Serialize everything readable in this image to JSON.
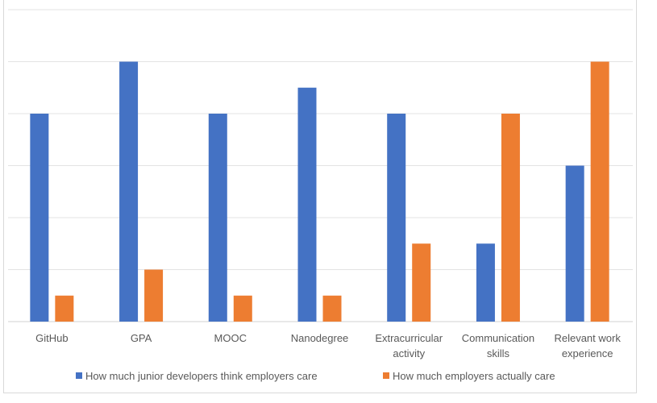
{
  "chart_data": {
    "type": "bar",
    "categories": [
      "GitHub",
      "GPA",
      "MOOC",
      "Nanodegree",
      "Extracurricular activity",
      "Communication skills",
      "Relevant work experience"
    ],
    "category_lines": [
      [
        "GitHub"
      ],
      [
        "GPA"
      ],
      [
        "MOOC"
      ],
      [
        "Nanodegree"
      ],
      [
        "Extracurricular",
        "activity"
      ],
      [
        "Communication",
        "skills"
      ],
      [
        "Relevant work",
        "experience"
      ]
    ],
    "series": [
      {
        "name": "How much junior developers think employers care",
        "color": "#4472C4",
        "values": [
          4,
          5,
          4,
          4.5,
          4,
          1.5,
          3
        ]
      },
      {
        "name": "How much employers actually care",
        "color": "#ED7D31",
        "values": [
          0.5,
          1,
          0.5,
          0.5,
          1.5,
          4,
          5
        ]
      }
    ],
    "ylim": [
      0,
      6
    ],
    "grid": true,
    "legend_position": "bottom",
    "title": "",
    "xlabel": "",
    "ylabel": ""
  }
}
